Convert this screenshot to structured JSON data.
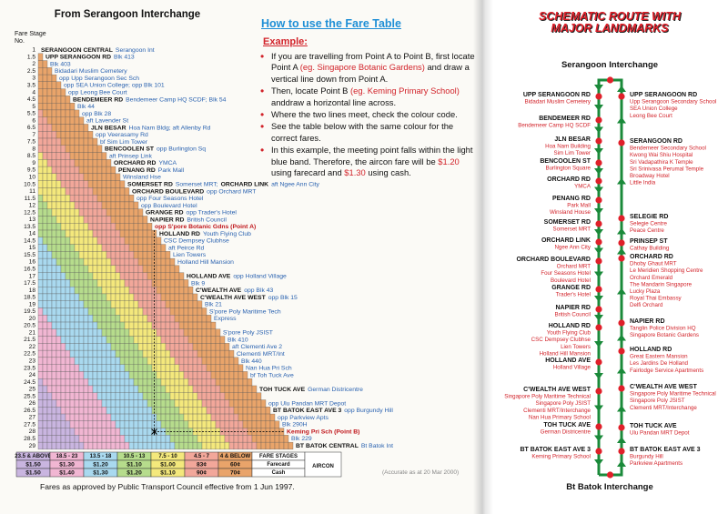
{
  "left": {
    "title": "From Serangoon Interchange",
    "stage_heading": "Fare Stage No.",
    "stages": [
      {
        "stage": "1",
        "road": "SERANGOON CENTRAL",
        "stop": "Serangoon Int"
      },
      {
        "stage": "1.5",
        "road": "UPP SERANGOON RD",
        "stop": "Blk 413"
      },
      {
        "stage": "2",
        "stop": "Blk 403"
      },
      {
        "stage": "2.5",
        "stop": "Bidadari Muslim Cemetery"
      },
      {
        "stage": "3",
        "stop": "opp Upp Serangoon Sec Sch"
      },
      {
        "stage": "3.5",
        "stop": "opp SEA Union College; opp Blk 101"
      },
      {
        "stage": "4",
        "stop": "opp Leong Bee Court"
      },
      {
        "stage": "4.5",
        "road": "BENDEMEER RD",
        "stop": "Bendemeer Camp HQ SCDF; Blk 54"
      },
      {
        "stage": "5",
        "stop": "Blk 44"
      },
      {
        "stage": "5.5",
        "stop": "opp Blk 28"
      },
      {
        "stage": "6",
        "stop": "aft Lavender St"
      },
      {
        "stage": "6.5",
        "road": "JLN BESAR",
        "stop": "Hoa Nam Bldg; aft Allenby Rd"
      },
      {
        "stage": "7",
        "stop": "opp Veerasamy Rd"
      },
      {
        "stage": "7.5",
        "stop": "bf Sim Lim Tower"
      },
      {
        "stage": "8",
        "road": "BENCOOLEN ST",
        "stop": "opp Burlington Sq"
      },
      {
        "stage": "8.5",
        "stop": "aft Prinsep Link"
      },
      {
        "stage": "9",
        "road": "ORCHARD RD",
        "stop": "YMCA"
      },
      {
        "stage": "9.5",
        "road": "PENANG RD",
        "stop": "Park Mall"
      },
      {
        "stage": "10",
        "stop": "Winsland Hse"
      },
      {
        "stage": "10.5",
        "road": "SOMERSET RD",
        "stop": "Somerset MRT;",
        "road2": "ORCHARD LINK",
        "stop2": "aft Ngee Ann City"
      },
      {
        "stage": "11",
        "road": "ORCHARD BOULEVARD",
        "stop": "opp Orchard MRT"
      },
      {
        "stage": "11.5",
        "stop": "opp Four Seasons Hotel"
      },
      {
        "stage": "12",
        "stop": "opp Boulevard Hotel"
      },
      {
        "stage": "12.5",
        "road": "GRANGE RD",
        "stop": "opp Trader's Hotel"
      },
      {
        "stage": "13",
        "road": "NAPIER RD",
        "stop": "British Council"
      },
      {
        "stage": "13.5",
        "stop": "opp S'pore Botanic Gdns (Point A)",
        "highlight": true
      },
      {
        "stage": "14",
        "road": "HOLLAND RD",
        "stop": "Youth Flying Club"
      },
      {
        "stage": "14.5",
        "stop": "CSC Dempsey Clubhse"
      },
      {
        "stage": "15",
        "stop": "aft Peirce Rd"
      },
      {
        "stage": "15.5",
        "stop": "Lien Towers"
      },
      {
        "stage": "16",
        "stop": "Holland Hill Mansion"
      },
      {
        "stage": "16.5"
      },
      {
        "stage": "17",
        "road": "HOLLAND AVE",
        "stop": "opp Holland Village"
      },
      {
        "stage": "17.5",
        "stop": "Blk 9"
      },
      {
        "stage": "18",
        "road": "C'WEALTH AVE",
        "stop": "opp Blk 43"
      },
      {
        "stage": "18.5",
        "road": "C'WEALTH AVE WEST",
        "stop": "opp Blk 15"
      },
      {
        "stage": "19",
        "stop": "Blk 21"
      },
      {
        "stage": "19.5",
        "stop": "S'pore Poly Maritime Tech"
      },
      {
        "stage": "20",
        "stop": "Express"
      },
      {
        "stage": "20.5"
      },
      {
        "stage": "21",
        "stop": "S'pore Poly JSIST"
      },
      {
        "stage": "21.5",
        "stop": "Blk 410"
      },
      {
        "stage": "22",
        "stop": "aft Clementi Ave 2"
      },
      {
        "stage": "22.5",
        "stop": "Clementi MRT/Int"
      },
      {
        "stage": "23",
        "stop": "Blk 440"
      },
      {
        "stage": "23.5",
        "stop": "Nan Hua Pri Sch"
      },
      {
        "stage": "24",
        "stop": "bf Toh Tuck Ave"
      },
      {
        "stage": "24.5"
      },
      {
        "stage": "25",
        "road": "TOH TUCK AVE",
        "stop": "German Districentre"
      },
      {
        "stage": "25.5"
      },
      {
        "stage": "26",
        "stop": "opp Ulu Pandan MRT Depot"
      },
      {
        "stage": "26.5",
        "road": "BT BATOK EAST AVE 3",
        "stop": "opp Burgundy Hill"
      },
      {
        "stage": "27",
        "stop": "opp Parkview Apts"
      },
      {
        "stage": "27.5",
        "stop": "Blk 290H"
      },
      {
        "stage": "28",
        "stop": "Keming Pri Sch (Point B)",
        "highlight": true
      },
      {
        "stage": "28.5",
        "stop": "Blk 229"
      },
      {
        "stage": "29",
        "road": "BT BATOK CENTRAL",
        "stop": "Bt Batok Int"
      }
    ]
  },
  "fare_table": {
    "bands": [
      {
        "label": "23.5 & ABOVE",
        "color": "#c9b5e0"
      },
      {
        "label": "18.5 - 23",
        "color": "#f1b6d2"
      },
      {
        "label": "13.5 - 18",
        "color": "#a9d9ef"
      },
      {
        "label": "10.5 - 13",
        "color": "#b6dc8c"
      },
      {
        "label": "7.5 - 10",
        "color": "#f4e87c"
      },
      {
        "label": "4.5 - 7",
        "color": "#f2a79a"
      },
      {
        "label": "4 & BELOW",
        "color": "#e9a46a"
      }
    ],
    "header": "FARE STAGES",
    "group": "AIRCON",
    "rows": [
      {
        "label": "Farecard",
        "fares": [
          "$1.50",
          "$1.30",
          "$1.20",
          "$1.10",
          "$1.00",
          "83¢",
          "60¢"
        ]
      },
      {
        "label": "Cash",
        "fares": [
          "$1.50",
          "$1.40",
          "$1.30",
          "$1.20",
          "$1.10",
          "90¢",
          "70¢"
        ]
      }
    ]
  },
  "notes": {
    "accuracy": "(Accurate as at 20 Mar 2000)",
    "approval": "Fares as approved by Public Transport Council effective from 1 Jun 1997."
  },
  "howto": {
    "title": "How to use the Fare Table",
    "example": "Example:",
    "bullets": [
      [
        {
          "text": "If you are travelling from Point A to Point B, first locate Point A "
        },
        {
          "text": "(eg. Singapore Botanic Gardens)",
          "emphasis": true
        },
        {
          "text": " and draw a vertical line down from Point A."
        }
      ],
      [
        {
          "text": "Then, locate Point B "
        },
        {
          "text": "(eg. Keming Primary School)",
          "emphasis": true
        },
        {
          "text": " anddraw a horizontal line across."
        }
      ],
      [
        {
          "text": "Where the two lines meet, check the colour code."
        }
      ],
      [
        {
          "text": "See the table below with the same colour for the correct fares."
        }
      ],
      [
        {
          "text": "In this example, the meeting point falls within the light blue band.  Therefore, the aircon fare will be "
        },
        {
          "text": "$1.20",
          "emphasis": true
        },
        {
          "text": " using farecard and "
        },
        {
          "text": "$1.30",
          "emphasis": true
        },
        {
          "text": " using cash."
        }
      ]
    ]
  },
  "schematic": {
    "title": "SCHEMATIC ROUTE WITH MAJOR LANDMARKS",
    "start": "Serangoon Interchange",
    "end": "Bt Batok Interchange",
    "left": [
      {
        "stop": "UPP SERANGOON RD",
        "landmarks": [
          "Bidadari Muslim Cemetery"
        ]
      },
      {
        "stop": "BENDEMEER RD",
        "landmarks": [
          "Bendemeer Camp HQ SCDF"
        ]
      },
      {
        "stop": "JLN BESAR",
        "landmarks": [
          "Hoa Nam Building",
          "Sim Lim Tower"
        ]
      },
      {
        "stop": "BENCOOLEN ST",
        "landmarks": [
          "Burlington Square"
        ]
      },
      {
        "stop": "ORCHARD RD",
        "landmarks": [
          "YMCA"
        ]
      },
      {
        "stop": "PENANG RD",
        "landmarks": [
          "Park Mall",
          "Winsland House"
        ]
      },
      {
        "stop": "SOMERSET RD",
        "landmarks": [
          "Somerset MRT"
        ]
      },
      {
        "stop": "ORCHARD LINK",
        "landmarks": [
          "Ngee Ann City"
        ]
      },
      {
        "stop": "ORCHARD BOULEVARD",
        "landmarks": [
          "Orchard MRT",
          "Four Seasons Hotel",
          "Boulevard Hotel"
        ]
      },
      {
        "stop": "GRANGE RD",
        "landmarks": [
          "Trader's Hotel"
        ]
      },
      {
        "stop": "NAPIER RD",
        "landmarks": [
          "British Council"
        ]
      },
      {
        "stop": "HOLLAND RD",
        "landmarks": [
          "Youth Flying Club",
          "CSC Dempsey Clubhse",
          "Lien Towers",
          "Holland Hill Mansion"
        ]
      },
      {
        "stop": "HOLLAND AVE",
        "landmarks": [
          "Holland Village"
        ]
      },
      {
        "stop": "C'WEALTH AVE WEST",
        "landmarks": [
          "Singapore Poly Maritime Technical",
          "Singapore Poly JSIST",
          "Clementi MRT/Interchange",
          "Nan Hua Primary School"
        ]
      },
      {
        "stop": "TOH TUCK AVE",
        "landmarks": [
          "German Districentre"
        ]
      },
      {
        "stop": "BT BATOK EAST AVE 3",
        "landmarks": [
          "Keming Primary School"
        ]
      }
    ],
    "right": [
      {
        "stop": "UPP SERANGOON RD",
        "landmarks": [
          "Upp Serangoon Secondary School",
          "SEA Union College",
          "Leong Bee Court"
        ]
      },
      {
        "stop": "SERANGOON RD",
        "landmarks": [
          "Bendemeer Secondary School",
          "Kwong Wai Shiu Hospital",
          "Sri Vadapathira K Temple",
          "Sri Srinivasa Perumal Temple",
          "Broadway Hotel",
          "Little India"
        ]
      },
      {
        "stop": "SELEGIE RD",
        "landmarks": [
          "Selegie Centre",
          "Peace Centre"
        ]
      },
      {
        "stop": "PRINSEP ST",
        "landmarks": [
          "Cathay Building"
        ]
      },
      {
        "stop": "ORCHARD RD",
        "landmarks": [
          "Dhoby Ghaut MRT",
          "Le Meridien Shopping Centre",
          "Orchard Emerald",
          "The Mandarin Singapore",
          "Lucky Plaza",
          "Royal Thai Embassy",
          "Delfi Orchard"
        ]
      },
      {
        "stop": "NAPIER RD",
        "landmarks": [
          "Tanglin Police Division HQ",
          "Singapore Botanic Gardens"
        ]
      },
      {
        "stop": "HOLLAND RD",
        "landmarks": [
          "Great Eastern Mansion",
          "Les Jardins De Holland",
          "Fairlodge Service Apartments"
        ]
      },
      {
        "stop": "C'WEALTH AVE WEST",
        "landmarks": [
          "Singapore Poly Maritime Technical",
          "Singapore Poly JSIST",
          "Clementi MRT/Interchange"
        ]
      },
      {
        "stop": "TOH TUCK AVE",
        "landmarks": [
          "Ulu Pandan MRT Depot"
        ]
      },
      {
        "stop": "BT BATOK EAST AVE 3",
        "landmarks": [
          "Burgundy Hill",
          "Parkview Apartments"
        ]
      }
    ]
  }
}
